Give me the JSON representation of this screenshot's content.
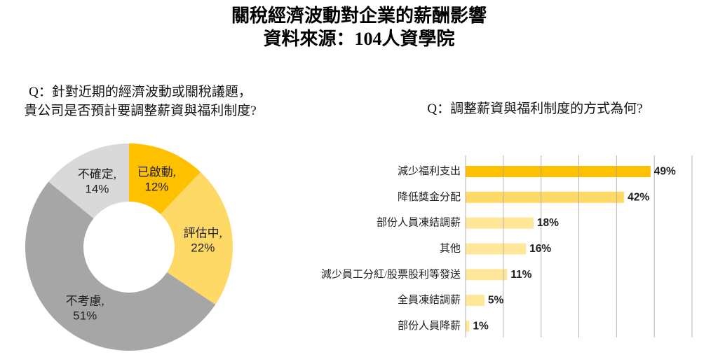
{
  "header": {
    "title": "關稅經濟波動對企業的薪酬影響",
    "subtitle": "資料來源：104人資學院"
  },
  "colors": {
    "orange": "#FFC000",
    "yellow": "#FFD966",
    "light_yellow": "#FFE699",
    "gray": "#A6A6A6",
    "light_gray": "#D9D9D9",
    "text": "#1F1F1F",
    "gridline": "#A6A6A6",
    "background": "#FFFFFF"
  },
  "chart_data": [
    {
      "type": "pie",
      "subtype": "donut",
      "title_line1": "Q：針對近期的經濟波動或關稅議題，",
      "title_line2": "貴公司是否預計要調整薪資與福利制度?",
      "start_angle_deg": 0,
      "direction": "clockwise",
      "value_suffix": "%",
      "label_format": "{label}, {value}%",
      "slices": [
        {
          "label": "已啟動",
          "value": 12,
          "color": "#FFC000"
        },
        {
          "label": "評估中",
          "value": 22,
          "color": "#FFD966"
        },
        {
          "label": "不考慮",
          "value": 51,
          "color": "#A6A6A6"
        },
        {
          "label": "不確定",
          "value": 14,
          "color": "#D9D9D9"
        }
      ]
    },
    {
      "type": "bar",
      "orientation": "horizontal",
      "title": "Q：調整薪資與福利制度的方式為何?",
      "xlabel": "",
      "ylabel": "",
      "xlim": [
        0,
        60
      ],
      "gridline_interval": 10,
      "grid": true,
      "legend": false,
      "value_suffix": "%",
      "categories": [
        "減少福利支出",
        "降低獎金分配",
        "部份人員凍結調薪",
        "其他",
        "減少員工分紅/股票股利等發送",
        "全員凍結調薪",
        "部份人員降薪"
      ],
      "values": [
        49,
        42,
        18,
        16,
        11,
        5,
        1
      ],
      "value_labels": [
        "49%",
        "42%",
        "18%",
        "16%",
        "11%",
        "5%",
        "1%"
      ],
      "bar_colors": [
        "#FFC000",
        "#FFD966",
        "#FFE699",
        "#FFE699",
        "#FFE699",
        "#FFE699",
        "#FFE699"
      ]
    }
  ]
}
